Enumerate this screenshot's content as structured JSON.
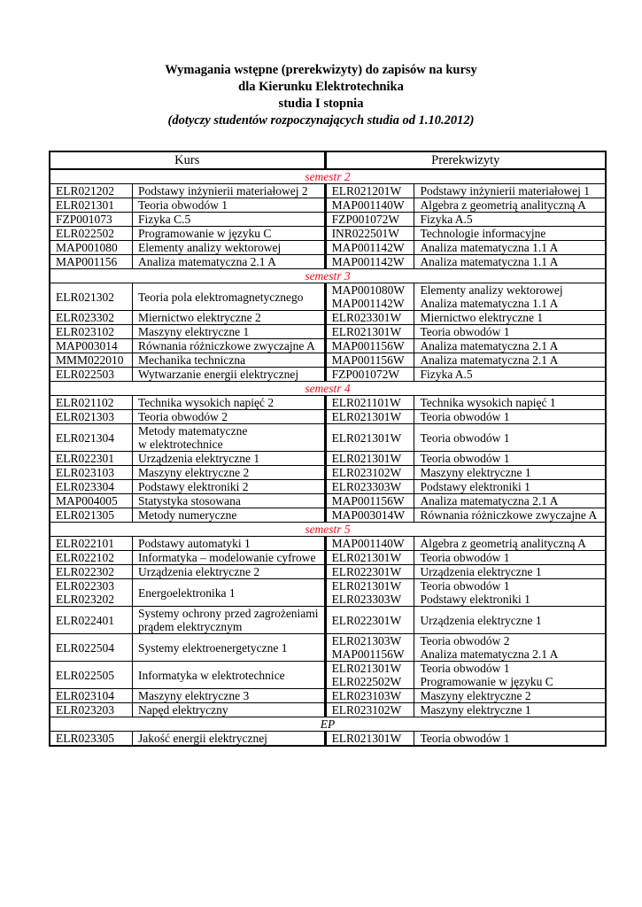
{
  "title": {
    "line1": "Wymagania wstępne (prerekwizyty) do zapisów na kursy",
    "line2": "dla Kierunku Elektrotechnika",
    "line3": "studia I stopnia",
    "line4": "(dotyczy studentów rozpoczynających studia od 1.10.2012)"
  },
  "table": {
    "headers": [
      "Kurs",
      "Prerekwizyty"
    ],
    "sections": [
      {
        "label": "semestr 2",
        "color": "#e8101a",
        "rows": [
          {
            "code": [
              "ELR021202"
            ],
            "name": [
              "Podstawy inżynierii materiałowej 2"
            ],
            "pre_code": [
              "ELR021201W"
            ],
            "pre_name": [
              "Podstawy inżynierii materiałowej 1"
            ]
          },
          {
            "code": [
              "ELR021301"
            ],
            "name": [
              "Teoria obwodów 1"
            ],
            "pre_code": [
              "MAP001140W"
            ],
            "pre_name": [
              "Algebra z geometrią analityczną A"
            ]
          },
          {
            "code": [
              "FZP001073"
            ],
            "name": [
              "Fizyka C.5"
            ],
            "pre_code": [
              "FZP001072W"
            ],
            "pre_name": [
              "Fizyka A.5"
            ]
          },
          {
            "code": [
              "ELR022502"
            ],
            "name": [
              "Programowanie w języku C"
            ],
            "pre_code": [
              "INR022501W"
            ],
            "pre_name": [
              "Technologie informacyjne"
            ]
          },
          {
            "code": [
              "MAP001080"
            ],
            "name": [
              "Elementy analizy wektorowej"
            ],
            "pre_code": [
              "MAP001142W"
            ],
            "pre_name": [
              "Analiza matematyczna 1.1 A"
            ]
          },
          {
            "code": [
              "MAP001156"
            ],
            "name": [
              "Analiza matematyczna 2.1 A"
            ],
            "pre_code": [
              "MAP001142W"
            ],
            "pre_name": [
              "Analiza matematyczna 1.1 A"
            ]
          }
        ]
      },
      {
        "label": "semestr 3",
        "color": "#e8101a",
        "rows": [
          {
            "code": [
              "ELR021302"
            ],
            "name": [
              "Teoria pola elektromagnetycznego"
            ],
            "pre_code": [
              "MAP001080W",
              "MAP001142W"
            ],
            "pre_name": [
              "Elementy analizy wektorowej",
              "Analiza matematyczna 1.1 A"
            ]
          },
          {
            "code": [
              "ELR023302"
            ],
            "name": [
              "Miernictwo elektryczne 2"
            ],
            "pre_code": [
              "ELR023301W"
            ],
            "pre_name": [
              "Miernictwo elektryczne 1"
            ]
          },
          {
            "code": [
              "ELR023102"
            ],
            "name": [
              "Maszyny elektryczne 1"
            ],
            "pre_code": [
              "ELR021301W"
            ],
            "pre_name": [
              "Teoria obwodów 1"
            ]
          },
          {
            "code": [
              "MAP003014"
            ],
            "name": [
              "Równania różniczkowe zwyczajne A"
            ],
            "pre_code": [
              "MAP001156W"
            ],
            "pre_name": [
              "Analiza matematyczna 2.1 A"
            ]
          },
          {
            "code": [
              "MMM022010"
            ],
            "name": [
              "Mechanika techniczna"
            ],
            "pre_code": [
              "MAP001156W"
            ],
            "pre_name": [
              "Analiza matematyczna 2.1 A"
            ]
          },
          {
            "code": [
              "ELR022503"
            ],
            "name": [
              "Wytwarzanie energii elektrycznej"
            ],
            "pre_code": [
              "FZP001072W"
            ],
            "pre_name": [
              "Fizyka A.5"
            ]
          }
        ]
      },
      {
        "label": "semestr 4",
        "color": "#e8101a",
        "rows": [
          {
            "code": [
              "ELR021102"
            ],
            "name": [
              "Technika wysokich napięć 2"
            ],
            "pre_code": [
              "ELR021101W"
            ],
            "pre_name": [
              "Technika wysokich napięć 1"
            ]
          },
          {
            "code": [
              "ELR021303"
            ],
            "name": [
              "Teoria obwodów 2"
            ],
            "pre_code": [
              "ELR021301W"
            ],
            "pre_name": [
              "Teoria obwodów 1"
            ]
          },
          {
            "code": [
              "ELR021304"
            ],
            "name": [
              "Metody matematyczne",
              "w elektrotechnice"
            ],
            "pre_code": [
              "ELR021301W"
            ],
            "pre_name": [
              "Teoria obwodów 1"
            ]
          },
          {
            "code": [
              "ELR022301"
            ],
            "name": [
              "Urządzenia elektryczne 1"
            ],
            "pre_code": [
              "ELR021301W"
            ],
            "pre_name": [
              "Teoria obwodów 1"
            ]
          },
          {
            "code": [
              "ELR023103"
            ],
            "name": [
              "Maszyny elektryczne 2"
            ],
            "pre_code": [
              "ELR023102W"
            ],
            "pre_name": [
              "Maszyny elektryczne 1"
            ]
          },
          {
            "code": [
              "ELR023304"
            ],
            "name": [
              "Podstawy elektroniki 2"
            ],
            "pre_code": [
              "ELR023303W"
            ],
            "pre_name": [
              "Podstawy elektroniki 1"
            ]
          },
          {
            "code": [
              "MAP004005"
            ],
            "name": [
              "Statystyka stosowana"
            ],
            "pre_code": [
              "MAP001156W"
            ],
            "pre_name": [
              "Analiza matematyczna 2.1 A"
            ]
          },
          {
            "code": [
              "ELR021305"
            ],
            "name": [
              "Metody numeryczne"
            ],
            "pre_code": [
              "MAP003014W"
            ],
            "pre_name": [
              "Równania różniczkowe zwyczajne A"
            ]
          }
        ]
      },
      {
        "label": "semestr 5",
        "color": "#e8101a",
        "rows": [
          {
            "code": [
              "ELR022101"
            ],
            "name": [
              "Podstawy automatyki 1"
            ],
            "pre_code": [
              "MAP001140W"
            ],
            "pre_name": [
              "Algebra z geometrią analityczną A"
            ]
          },
          {
            "code": [
              "ELR022102"
            ],
            "name": [
              "Informatyka – modelowanie cyfrowe"
            ],
            "pre_code": [
              "ELR021301W"
            ],
            "pre_name": [
              "Teoria obwodów 1"
            ]
          },
          {
            "code": [
              "ELR022302"
            ],
            "name": [
              "Urządzenia elektryczne 2"
            ],
            "pre_code": [
              "ELR022301W"
            ],
            "pre_name": [
              "Urządzenia elektryczne 1"
            ]
          },
          {
            "code": [
              "ELR022303",
              "ELR023202"
            ],
            "name": [
              "Energoelektronika 1"
            ],
            "pre_code": [
              "ELR021301W",
              "ELR023303W"
            ],
            "pre_name": [
              "Teoria obwodów 1",
              "Podstawy elektroniki 1"
            ]
          },
          {
            "code": [
              "ELR022401"
            ],
            "name": [
              "Systemy ochrony przed zagrożeniami",
              "prądem elektrycznym"
            ],
            "pre_code": [
              "ELR022301W"
            ],
            "pre_name": [
              "Urządzenia elektryczne 1"
            ]
          },
          {
            "code": [
              "ELR022504"
            ],
            "name": [
              "Systemy elektroenergetyczne 1"
            ],
            "pre_code": [
              "ELR021303W",
              "MAP001156W"
            ],
            "pre_name": [
              "Teoria obwodów 2",
              "Analiza matematyczna 2.1 A"
            ]
          },
          {
            "code": [
              "ELR022505"
            ],
            "name": [
              "Informatyka w elektrotechnice"
            ],
            "pre_code": [
              "ELR021301W",
              "ELR022502W"
            ],
            "pre_name": [
              "Teoria obwodów 1",
              "Programowanie w języku C"
            ]
          },
          {
            "code": [
              "ELR023104"
            ],
            "name": [
              "Maszyny elektryczne 3"
            ],
            "pre_code": [
              "ELR023103W"
            ],
            "pre_name": [
              "Maszyny elektryczne 2"
            ]
          },
          {
            "code": [
              "ELR023203"
            ],
            "name": [
              "Napęd elektryczny"
            ],
            "pre_code": [
              "ELR023102W"
            ],
            "pre_name": [
              "Maszyny elektryczne 1"
            ]
          }
        ]
      },
      {
        "label": "EP",
        "color": "#000000",
        "rows": [
          {
            "code": [
              "ELR023305"
            ],
            "name": [
              "Jakość energii elektrycznej"
            ],
            "pre_code": [
              "ELR021301W"
            ],
            "pre_name": [
              "Teoria obwodów 1"
            ]
          }
        ]
      }
    ]
  }
}
